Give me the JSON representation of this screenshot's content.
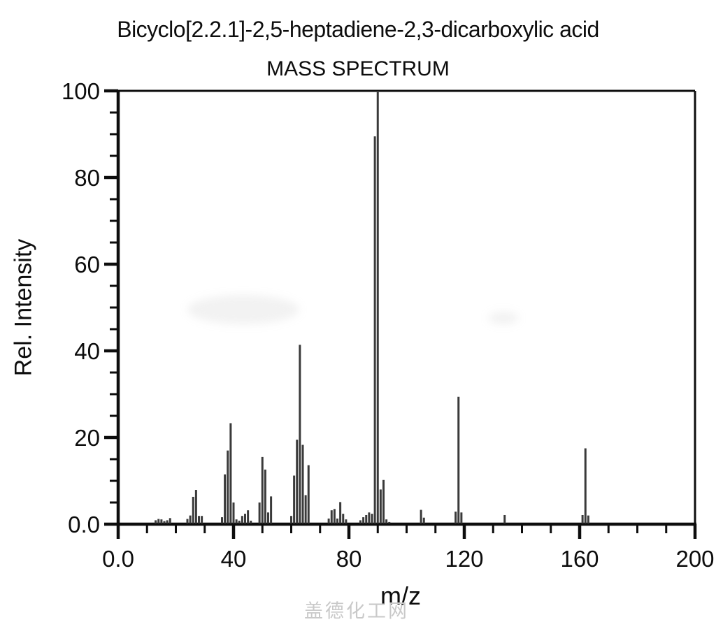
{
  "header": {
    "title": "Bicyclo[2.2.1]-2,5-heptadiene-2,3-dicarboxylic acid",
    "subtitle": "MASS SPECTRUM"
  },
  "watermark": {
    "text": "盖德化工网"
  },
  "colors": {
    "axis": "#0d0d0d",
    "bar": "#3a3a3a",
    "watermark": "#c9c9c9"
  },
  "chart_data": {
    "type": "bar",
    "title": "Bicyclo[2.2.1]-2,5-heptadiene-2,3-dicarboxylic acid",
    "subtitle": "MASS SPECTRUM",
    "xlabel": "m/z",
    "ylabel": "Rel. Intensity",
    "xlim": [
      0,
      200
    ],
    "ylim": [
      0,
      100
    ],
    "grid": false,
    "legend": false,
    "frame": "full-box",
    "x_major_ticks": [
      0,
      40,
      80,
      120,
      160,
      200
    ],
    "x_major_tick_labels": [
      "0.0",
      "40",
      "80",
      "120",
      "160",
      "200"
    ],
    "x_minor_tick_step": 10,
    "y_major_ticks": [
      0,
      20,
      40,
      60,
      80,
      100
    ],
    "y_major_tick_labels": [
      "0.0",
      "20",
      "40",
      "60",
      "80",
      "100"
    ],
    "y_minor_tick_step": 5,
    "series_name": "Relative intensity (%) vs m/z",
    "peaks": [
      [
        13,
        0.9
      ],
      [
        14,
        1.2
      ],
      [
        15,
        1.1
      ],
      [
        16,
        0.7
      ],
      [
        17,
        0.9
      ],
      [
        18,
        1.4
      ],
      [
        24,
        1.2
      ],
      [
        25,
        2.0
      ],
      [
        26,
        6.3
      ],
      [
        27,
        7.9
      ],
      [
        28,
        1.9
      ],
      [
        29,
        1.9
      ],
      [
        36,
        1.6
      ],
      [
        37,
        11.5
      ],
      [
        38,
        17.0
      ],
      [
        39,
        23.3
      ],
      [
        40,
        5.0
      ],
      [
        41,
        1.1
      ],
      [
        42,
        0.8
      ],
      [
        43,
        1.9
      ],
      [
        44,
        2.4
      ],
      [
        45,
        3.2
      ],
      [
        46,
        0.8
      ],
      [
        49,
        5.0
      ],
      [
        50,
        15.5
      ],
      [
        51,
        12.6
      ],
      [
        52,
        2.7
      ],
      [
        53,
        6.4
      ],
      [
        60,
        1.9
      ],
      [
        61,
        11.2
      ],
      [
        62,
        19.5
      ],
      [
        63,
        41.4
      ],
      [
        64,
        18.3
      ],
      [
        65,
        6.7
      ],
      [
        66,
        13.6
      ],
      [
        73,
        1.3
      ],
      [
        74,
        3.2
      ],
      [
        75,
        3.5
      ],
      [
        76,
        1.3
      ],
      [
        77,
        5.1
      ],
      [
        78,
        2.4
      ],
      [
        79,
        1.1
      ],
      [
        84,
        0.9
      ],
      [
        85,
        1.6
      ],
      [
        86,
        2.1
      ],
      [
        87,
        2.7
      ],
      [
        88,
        2.4
      ],
      [
        89,
        89.5
      ],
      [
        90,
        100.0
      ],
      [
        91,
        8.0
      ],
      [
        92,
        10.2
      ],
      [
        93,
        1.1
      ],
      [
        94,
        0.5
      ],
      [
        105,
        3.3
      ],
      [
        106,
        1.5
      ],
      [
        117,
        2.9
      ],
      [
        118,
        29.4
      ],
      [
        119,
        2.7
      ],
      [
        134,
        2.1
      ],
      [
        161,
        2.1
      ],
      [
        162,
        17.5
      ],
      [
        163,
        2.0
      ]
    ]
  }
}
